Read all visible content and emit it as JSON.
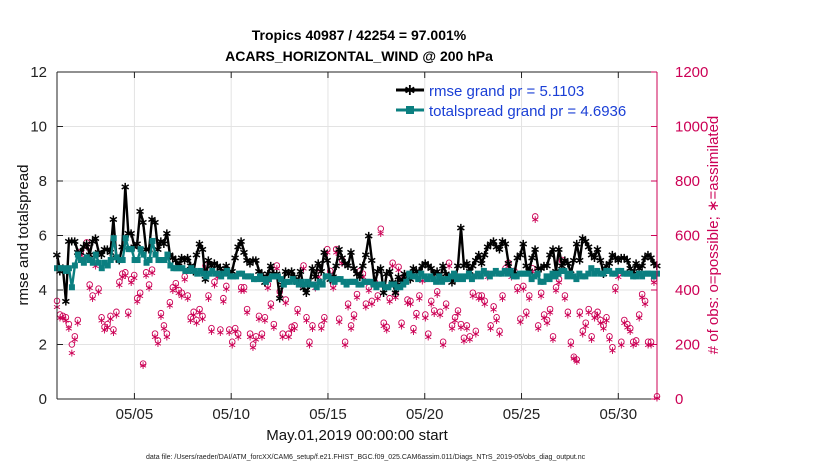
{
  "chart_data": {
    "type": "line",
    "title": "Tropics 40987 / 42254 = 97.001%",
    "subtitle": "ACARS_HORIZONTAL_WIND @ 200 hPa",
    "xlabel": "May.01,2019 00:00:00 start",
    "ylabel": "rmse and totalspread",
    "ylabel_right": "# of obs: o=possible; ∗=assimilated",
    "footnote": "data file: /Users/raeder/DAI/ATM_forcXX/CAM6_setup/f.e21.FHIST_BGC.f09_025.CAM6assim.011/Diags_NTrS_2019-05/obs_diag_output.nc",
    "xlim": [
      1,
      32
    ],
    "ylim": [
      0,
      12
    ],
    "ylim_right": [
      0,
      1200
    ],
    "x_ticks": [
      5,
      10,
      15,
      20,
      25,
      30
    ],
    "x_tick_labels": [
      "05/05",
      "05/10",
      "05/15",
      "05/20",
      "05/25",
      "05/30"
    ],
    "y_ticks": [
      0,
      2,
      4,
      6,
      8,
      10,
      12
    ],
    "y_ticks_right": [
      0,
      200,
      400,
      600,
      800,
      1000,
      1200
    ],
    "legend_position": "top-right",
    "series": [
      {
        "name": "rmse grand pr = 5.1103",
        "color": "#000000",
        "marker": "asterisk",
        "values": [
          5.3,
          4.7,
          4.8,
          3.6,
          5.8,
          5.8,
          5.8,
          5.4,
          5.4,
          5.6,
          5.7,
          5.3,
          5.8,
          5.9,
          5.4,
          5.3,
          5.5,
          5.5,
          5.4,
          6.6,
          5.2,
          5.1,
          5.6,
          7.8,
          6.1,
          6.1,
          5.6,
          5.7,
          6.9,
          6.5,
          5.5,
          5.5,
          6.6,
          6.5,
          5.5,
          5.8,
          5.7,
          6.1,
          5.3,
          5.2,
          5.1,
          4.9,
          5.2,
          5.1,
          5.2,
          4.9,
          4.7,
          5.3,
          5.7,
          5.5,
          4.4,
          5.1,
          4.9,
          5.0,
          4.9,
          4.8,
          4.6,
          4.9,
          4.6,
          4.7,
          5.2,
          5.6,
          5.8,
          5.4,
          5.1,
          5.0,
          5.1,
          5.1,
          4.7,
          4.6,
          4.3,
          4.6,
          4.9,
          4.6,
          4.6,
          3.7,
          4.2,
          4.7,
          4.6,
          4.7,
          4.5,
          4.3,
          4.7,
          4.1,
          3.9,
          4.2,
          4.8,
          4.5,
          5.0,
          4.7,
          5.4,
          5.1,
          4.4,
          4.5,
          4.9,
          5.5,
          5.2,
          5.0,
          4.9,
          5.4,
          4.8,
          4.6,
          4.5,
          4.9,
          5.3,
          6.0,
          5.1,
          4.2,
          4.7,
          4.8,
          3.9,
          4.6,
          4.7,
          4.3,
          3.9,
          4.5,
          4.3,
          4.6,
          4.5,
          4.4,
          4.8,
          4.7,
          4.7,
          4.9,
          5.0,
          4.9,
          4.8,
          4.6,
          4.7,
          4.4,
          4.9,
          4.6,
          4.5,
          4.3,
          4.4,
          4.9,
          6.3,
          4.9,
          5.0,
          4.7,
          4.9,
          5.1,
          5.3,
          5.0,
          5.3,
          5.6,
          5.7,
          5.8,
          5.6,
          5.5,
          5.8,
          5.7,
          5.0,
          4.6,
          4.6,
          5.2,
          5.3,
          5.7,
          4.9,
          4.7,
          5.2,
          5.5,
          4.8,
          4.8,
          4.9,
          4.9,
          5.3,
          5.5,
          4.7,
          5.5,
          4.9,
          5.1,
          5.0,
          4.6,
          5.1,
          5.7,
          5.1,
          5.9,
          5.8,
          5.6,
          5.3,
          5.2,
          5.5,
          5.1,
          4.6,
          4.9,
          5.0,
          5.3,
          5.2,
          5.1,
          5.2,
          5.2,
          5.1,
          4.8,
          4.6,
          5.0,
          4.8,
          4.9,
          5.2,
          5.3,
          5.2,
          5.0,
          4.9
        ]
      },
      {
        "name": "totalspread grand pr = 4.6936",
        "color": "#0b7f80",
        "marker": "square",
        "values": [
          4.8,
          4.8,
          4.8,
          4.7,
          4.8,
          4.1,
          4.9,
          5.3,
          5.1,
          5.0,
          5.2,
          5.1,
          5.0,
          5.3,
          5.0,
          4.8,
          5.0,
          4.9,
          5.1,
          5.9,
          5.2,
          5.1,
          5.1,
          5.9,
          5.5,
          5.5,
          5.1,
          5.1,
          5.5,
          5.3,
          5.0,
          5.1,
          5.8,
          5.3,
          5.1,
          5.1,
          5.1,
          5.3,
          4.9,
          4.8,
          4.8,
          4.8,
          4.8,
          4.7,
          4.7,
          4.8,
          4.7,
          4.6,
          4.7,
          4.6,
          4.5,
          4.6,
          4.7,
          4.6,
          4.6,
          4.5,
          4.6,
          4.7,
          4.5,
          4.5,
          4.5,
          4.6,
          4.6,
          4.5,
          4.5,
          4.5,
          4.4,
          4.4,
          4.5,
          4.4,
          4.3,
          4.4,
          4.5,
          4.5,
          4.5,
          4.4,
          4.2,
          4.3,
          4.3,
          4.4,
          4.3,
          4.2,
          4.3,
          4.2,
          4.3,
          4.2,
          4.2,
          4.1,
          4.3,
          4.2,
          4.5,
          4.5,
          4.4,
          4.3,
          4.4,
          4.4,
          4.3,
          4.2,
          4.3,
          4.3,
          4.3,
          4.2,
          4.2,
          4.3,
          4.3,
          4.3,
          4.2,
          4.1,
          4.2,
          4.2,
          4.1,
          4.1,
          4.2,
          4.2,
          4.1,
          4.1,
          4.2,
          4.3,
          4.6,
          4.5,
          4.5,
          4.4,
          4.6,
          4.5,
          4.4,
          4.5,
          4.4,
          4.3,
          4.5,
          4.3,
          4.4,
          4.4,
          4.5,
          4.6,
          4.4,
          4.5,
          4.4,
          4.5,
          4.6,
          4.4,
          4.5,
          4.6,
          4.5,
          4.7,
          4.6,
          4.5,
          4.6,
          4.7,
          4.6,
          4.6,
          4.7,
          4.6,
          4.7,
          4.5,
          4.5,
          4.6,
          4.6,
          4.6,
          4.6,
          4.4,
          4.5,
          4.6,
          4.3,
          4.3,
          4.5,
          4.4,
          4.6,
          4.5,
          4.6,
          4.7,
          4.7,
          4.5,
          4.6,
          4.5,
          4.4,
          4.6,
          4.5,
          4.5,
          4.6,
          4.8,
          4.6,
          4.7,
          4.6,
          4.6,
          4.7,
          4.7,
          4.6,
          4.6,
          4.7,
          4.7,
          4.6,
          4.6,
          4.6,
          4.5,
          4.5,
          4.6,
          4.5,
          4.6,
          4.6,
          4.6,
          4.5,
          4.6
        ]
      }
    ],
    "obs_series": {
      "name": "# of obs",
      "color": "#cc0055",
      "possible_marker": "circle",
      "assimilated_marker": "asterisk",
      "possible": [
        360,
        310,
        305,
        300,
        275,
        200,
        230,
        290,
        540,
        520,
        575,
        420,
        380,
        510,
        405,
        300,
        265,
        275,
        305,
        255,
        320,
        430,
        460,
        465,
        320,
        440,
        455,
        370,
        390,
        130,
        465,
        420,
        475,
        240,
        215,
        315,
        270,
        240,
        355,
        410,
        425,
        400,
        390,
        450,
        380,
        300,
        320,
        290,
        330,
        305,
        490,
        380,
        260,
        430,
        460,
        255,
        370,
        415,
        255,
        210,
        260,
        240,
        410,
        410,
        330,
        240,
        200,
        230,
        305,
        240,
        300,
        420,
        350,
        275,
        490,
        395,
        240,
        365,
        240,
        265,
        270,
        330,
        430,
        490,
        300,
        210,
        270,
        420,
        460,
        270,
        300,
        550,
        470,
        420,
        550,
        295,
        510,
        210,
        350,
        270,
        310,
        385,
        470,
        460,
        350,
        410,
        360,
        430,
        380,
        625,
        280,
        265,
        370,
        500,
        385,
        485,
        280,
        450,
        365,
        360,
        260,
        315,
        380,
        445,
        310,
        240,
        360,
        325,
        395,
        320,
        210,
        350,
        500,
        270,
        300,
        325,
        275,
        225,
        270,
        230,
        390,
        250,
        380,
        380,
        360,
        460,
        270,
        340,
        300,
        250,
        380,
        480,
        500,
        460,
        470,
        410,
        295,
        415,
        320,
        380,
        480,
        670,
        270,
        390,
        310,
        290,
        330,
        230,
        410,
        440,
        510,
        380,
        320,
        210,
        155,
        145,
        320,
        250,
        280,
        330,
        230,
        310,
        320,
        290,
        270,
        300,
        230,
        190,
        410,
        460,
        210,
        290,
        275,
        260,
        210,
        215,
        310,
        385,
        360,
        210,
        210,
        440,
        10
      ],
      "assimilated": [
        340,
        300,
        300,
        290,
        260,
        170,
        220,
        280,
        530,
        510,
        560,
        410,
        370,
        490,
        395,
        290,
        255,
        265,
        295,
        245,
        310,
        420,
        450,
        455,
        310,
        430,
        445,
        360,
        380,
        125,
        455,
        410,
        465,
        230,
        205,
        305,
        260,
        230,
        345,
        400,
        415,
        390,
        380,
        440,
        370,
        290,
        310,
        280,
        320,
        295,
        480,
        370,
        250,
        420,
        450,
        245,
        360,
        405,
        245,
        200,
        250,
        230,
        400,
        400,
        320,
        230,
        190,
        220,
        295,
        230,
        290,
        410,
        340,
        265,
        480,
        385,
        230,
        355,
        230,
        255,
        260,
        320,
        420,
        480,
        290,
        200,
        260,
        410,
        450,
        260,
        290,
        540,
        460,
        410,
        540,
        285,
        500,
        200,
        340,
        260,
        300,
        375,
        460,
        450,
        340,
        400,
        350,
        420,
        370,
        610,
        270,
        255,
        360,
        490,
        375,
        475,
        270,
        440,
        355,
        350,
        250,
        305,
        370,
        435,
        300,
        230,
        350,
        315,
        385,
        310,
        200,
        340,
        490,
        260,
        290,
        315,
        265,
        215,
        260,
        220,
        380,
        240,
        370,
        370,
        350,
        450,
        260,
        330,
        290,
        240,
        370,
        470,
        490,
        450,
        460,
        400,
        285,
        405,
        310,
        370,
        470,
        660,
        260,
        380,
        300,
        280,
        320,
        220,
        400,
        430,
        500,
        370,
        310,
        200,
        150,
        140,
        310,
        240,
        270,
        320,
        220,
        300,
        310,
        280,
        260,
        290,
        220,
        180,
        400,
        450,
        200,
        280,
        265,
        250,
        200,
        205,
        300,
        375,
        350,
        200,
        200,
        430,
        5
      ]
    }
  }
}
